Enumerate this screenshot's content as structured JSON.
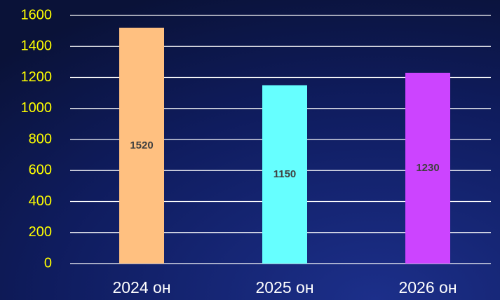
{
  "chart_data": {
    "type": "bar",
    "categories": [
      "2024 он",
      "2025 он",
      "2026 он"
    ],
    "values": [
      1520,
      1150,
      1230
    ],
    "colors": [
      "#ffc080",
      "#66ffff",
      "#cc44ff"
    ],
    "ylim": [
      0,
      1600
    ],
    "yticks": [
      0,
      200,
      400,
      600,
      800,
      1000,
      1200,
      1400,
      1600
    ],
    "grid": true
  }
}
